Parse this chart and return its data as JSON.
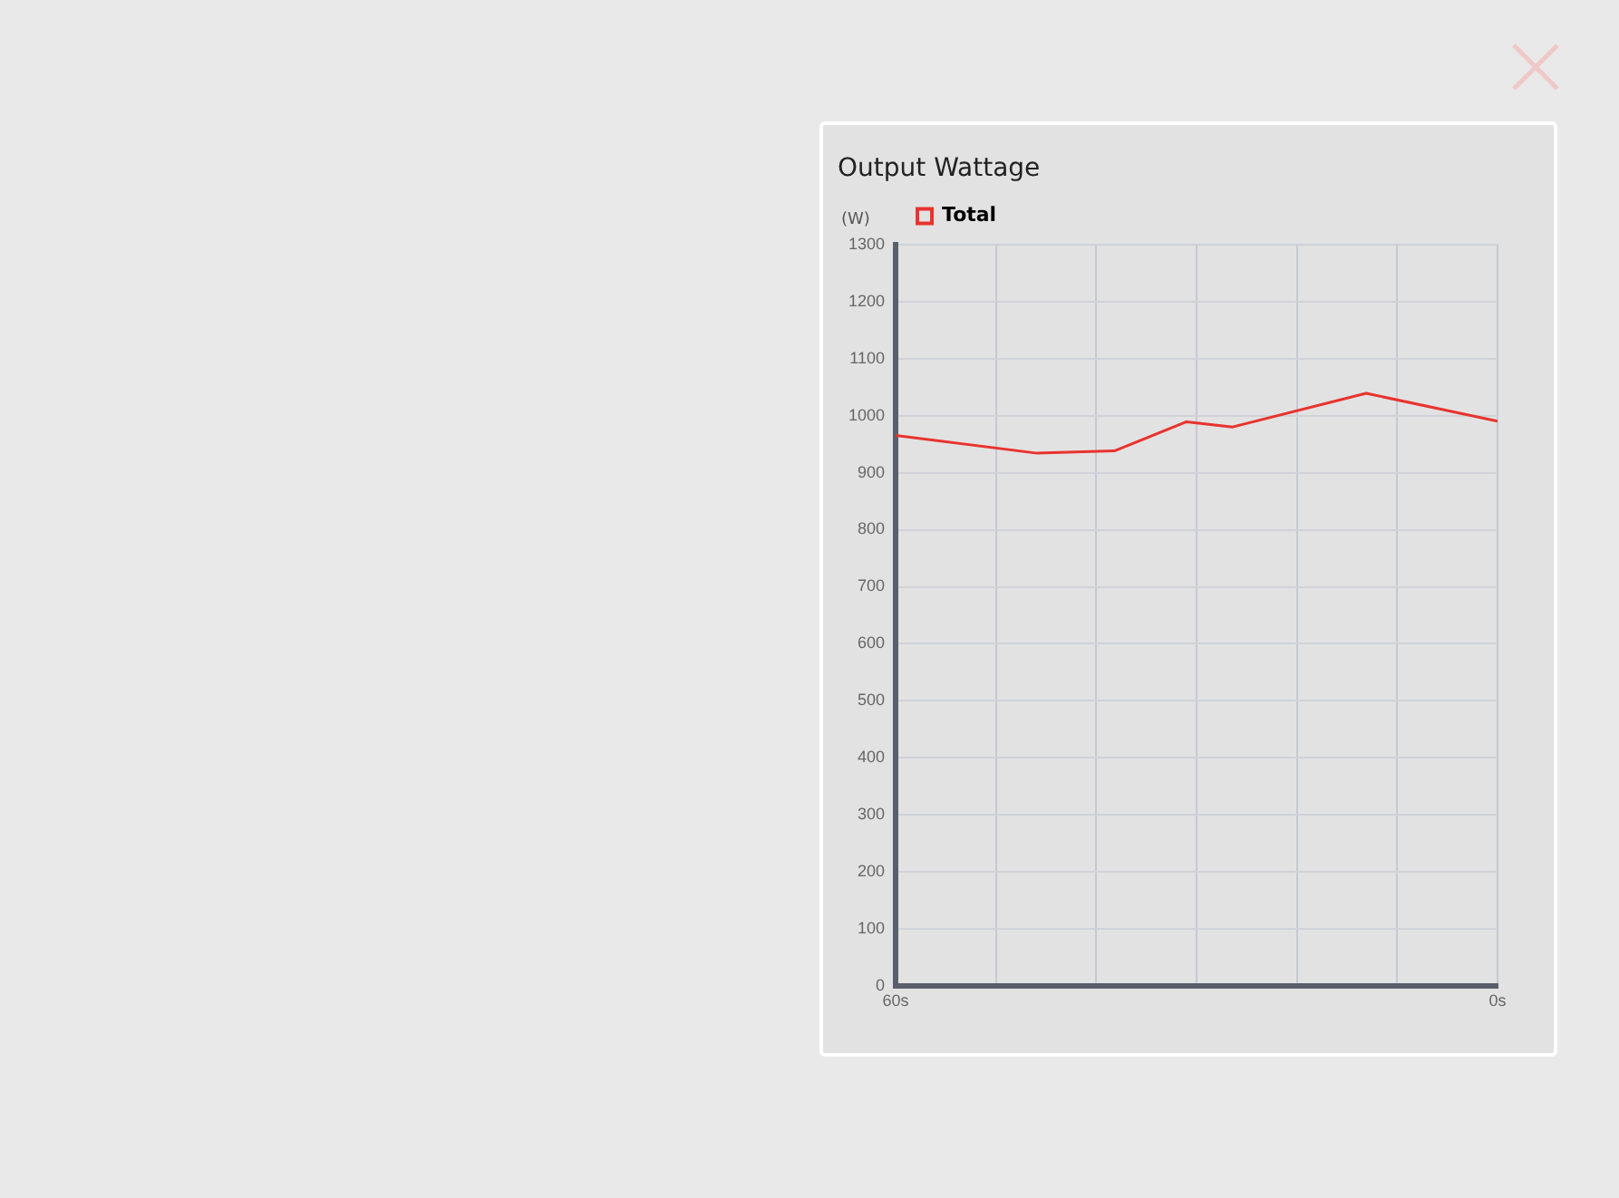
{
  "chart_data": {
    "type": "line",
    "title": "Output Wattage",
    "ylabel": "(W)",
    "x": [
      60,
      45.9,
      38.2,
      31,
      26.4,
      13.1,
      0
    ],
    "series": [
      {
        "name": "Total",
        "color": "#e8332e",
        "values": [
          965,
          934,
          938,
          989,
          980,
          1039,
          990
        ]
      }
    ],
    "xlim": [
      60,
      0
    ],
    "xticks": [
      {
        "value": 60,
        "label": "60s"
      },
      {
        "value": 50,
        "label": null
      },
      {
        "value": 40,
        "label": null
      },
      {
        "value": 30,
        "label": null
      },
      {
        "value": 20,
        "label": null
      },
      {
        "value": 10,
        "label": null
      },
      {
        "value": 0,
        "label": "0s"
      }
    ],
    "ylim": [
      0,
      1300
    ],
    "yticks": [
      0,
      100,
      200,
      300,
      400,
      500,
      600,
      700,
      800,
      900,
      1000,
      1100,
      1200,
      1300
    ],
    "grid": true,
    "legend": "top left",
    "marker": "none",
    "line_style": "solid"
  }
}
